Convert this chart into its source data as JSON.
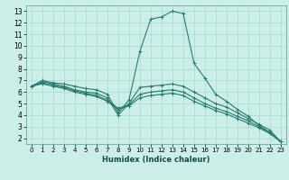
{
  "xlabel": "Humidex (Indice chaleur)",
  "bg_color": "#cceee8",
  "line_color": "#2a7a6e",
  "grid_color": "#aaddd6",
  "xlim": [
    -0.5,
    23.5
  ],
  "ylim": [
    1.5,
    13.5
  ],
  "xticks": [
    0,
    1,
    2,
    3,
    4,
    5,
    6,
    7,
    8,
    9,
    10,
    11,
    12,
    13,
    14,
    15,
    16,
    17,
    18,
    19,
    20,
    21,
    22,
    23
  ],
  "yticks": [
    2,
    3,
    4,
    5,
    6,
    7,
    8,
    9,
    10,
    11,
    12,
    13
  ],
  "curves": [
    {
      "x": [
        0,
        1,
        2,
        3,
        4,
        5,
        6,
        7,
        8,
        9,
        10,
        11,
        12,
        13,
        14,
        15,
        16,
        17,
        18,
        19,
        20,
        21,
        22,
        23
      ],
      "y": [
        6.5,
        7.0,
        6.8,
        6.7,
        6.5,
        6.3,
        6.2,
        5.8,
        4.2,
        5.3,
        9.5,
        12.3,
        12.5,
        13.0,
        12.8,
        8.5,
        7.2,
        5.8,
        5.2,
        4.5,
        3.9,
        3.1,
        2.5,
        1.7
      ]
    },
    {
      "x": [
        0,
        1,
        2,
        3,
        4,
        5,
        6,
        7,
        8,
        9,
        10,
        11,
        12,
        13,
        14,
        15,
        16,
        17,
        18,
        19,
        20,
        21,
        22,
        23
      ],
      "y": [
        6.5,
        6.9,
        6.7,
        6.5,
        6.2,
        6.0,
        5.9,
        5.5,
        4.0,
        5.0,
        6.4,
        6.5,
        6.6,
        6.7,
        6.5,
        6.0,
        5.5,
        5.0,
        4.7,
        4.2,
        3.7,
        3.2,
        2.7,
        1.7
      ]
    },
    {
      "x": [
        0,
        1,
        2,
        3,
        4,
        5,
        6,
        7,
        8,
        9,
        10,
        11,
        12,
        13,
        14,
        15,
        16,
        17,
        18,
        19,
        20,
        21,
        22,
        23
      ],
      "y": [
        6.5,
        6.8,
        6.6,
        6.4,
        6.1,
        5.9,
        5.7,
        5.3,
        4.6,
        4.9,
        5.8,
        6.0,
        6.1,
        6.2,
        6.0,
        5.5,
        5.0,
        4.6,
        4.3,
        3.9,
        3.5,
        3.0,
        2.5,
        1.7
      ]
    },
    {
      "x": [
        0,
        1,
        2,
        3,
        4,
        5,
        6,
        7,
        8,
        9,
        10,
        11,
        12,
        13,
        14,
        15,
        16,
        17,
        18,
        19,
        20,
        21,
        22,
        23
      ],
      "y": [
        6.5,
        6.7,
        6.5,
        6.3,
        6.0,
        5.8,
        5.6,
        5.2,
        4.5,
        4.8,
        5.5,
        5.7,
        5.8,
        5.9,
        5.7,
        5.2,
        4.8,
        4.4,
        4.1,
        3.7,
        3.3,
        2.9,
        2.4,
        1.7
      ]
    }
  ]
}
